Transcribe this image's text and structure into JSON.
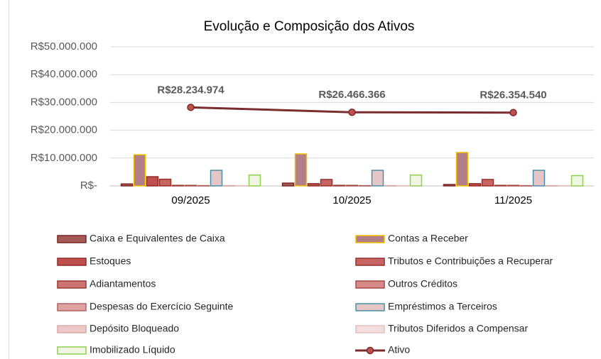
{
  "chart_data": {
    "type": "bar_line",
    "title": "Evolução  e Composição  dos Ativos",
    "categories": [
      "09/2025",
      "10/2025",
      "11/2025"
    ],
    "ylim": [
      0,
      50000000
    ],
    "yticks": [
      {
        "value": 0,
        "label": "R$-"
      },
      {
        "value": 10000000,
        "label": "R$10.000.000"
      },
      {
        "value": 20000000,
        "label": "R$20.000.000"
      },
      {
        "value": 30000000,
        "label": "R$30.000.000"
      },
      {
        "value": 40000000,
        "label": "R$40.000.000"
      },
      {
        "value": 50000000,
        "label": "R$50.000.000"
      }
    ],
    "grid": true,
    "legend": "bottom",
    "series": [
      {
        "name": "Caixa e Equivalentes de Caixa",
        "color": "#a65a57",
        "edgecolor": "#7b2423",
        "values": [
          700000,
          1000000,
          500000
        ]
      },
      {
        "name": "Contas a Receber",
        "color": "#b27f86",
        "edgecolor": "#f0c000",
        "values": [
          11200000,
          11500000,
          12000000
        ]
      },
      {
        "name": "Estoques",
        "color": "#c0504d",
        "edgecolor": "#8f2b28",
        "values": [
          3300000,
          800000,
          800000
        ]
      },
      {
        "name": "Tributos e Contribuições a Recuperar",
        "color": "#c86462",
        "edgecolor": "#93302d",
        "values": [
          2400000,
          2300000,
          2300000
        ]
      },
      {
        "name": "Adiantamentos",
        "color": "#cd7371",
        "edgecolor": "#9b3a37",
        "values": [
          200000,
          200000,
          200000
        ]
      },
      {
        "name": "Outros Créditos",
        "color": "#d88a88",
        "edgecolor": "#a44a47",
        "values": [
          200000,
          200000,
          200000
        ]
      },
      {
        "name": "Despesas do Exercício Seguinte",
        "color": "#e0a3a2",
        "edgecolor": "#b06462",
        "values": [
          100000,
          100000,
          100000
        ]
      },
      {
        "name": "Empréstimos a Terceiros",
        "color": "#e5c6c6",
        "edgecolor": "#4a8fa8",
        "values": [
          5600000,
          5600000,
          5600000
        ]
      },
      {
        "name": "Depósito Bloqueado",
        "color": "#ecc8c6",
        "edgecolor": "#d8a9a7",
        "values": [
          100000,
          100000,
          100000
        ]
      },
      {
        "name": "Tributos Diferidos a Compensar",
        "color": "#f4dedd",
        "edgecolor": "#e4c0bf",
        "values": [
          100000,
          100000,
          100000
        ]
      },
      {
        "name": "Imobilizado Líquido",
        "color": "#f0f5e4",
        "edgecolor": "#8fd14f",
        "values": [
          3900000,
          3900000,
          3700000
        ]
      },
      {
        "name": "Ativo",
        "color": "#7b2c2c",
        "type": "line",
        "values": [
          28234974,
          26466366,
          26354540
        ],
        "value_labels": [
          "R$28.234.974",
          "R$26.466.366",
          "R$26.354.540"
        ]
      }
    ]
  }
}
